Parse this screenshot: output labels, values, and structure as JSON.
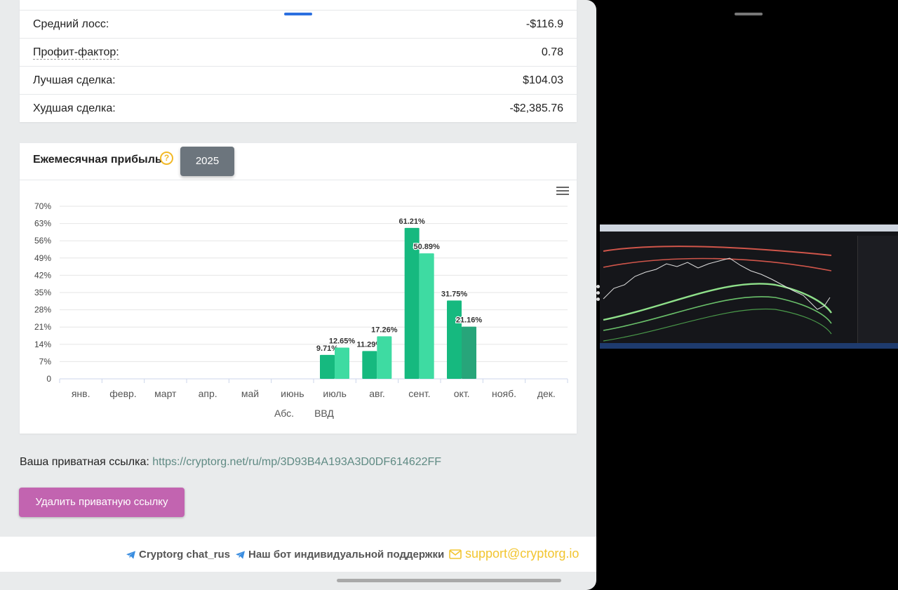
{
  "stats": [
    {
      "label": "Средний лосс:",
      "value": "-$116.9",
      "dotted": false
    },
    {
      "label": "Профит-фактор:",
      "value": "0.78",
      "dotted": true
    },
    {
      "label": "Лучшая сделка:",
      "value": "$104.03",
      "dotted": false
    },
    {
      "label": "Худшая сделка:",
      "value": "-$2,385.76",
      "dotted": false
    }
  ],
  "monthly": {
    "title": "Ежемесячная прибыль",
    "help_icon": "question-circle-icon",
    "year": "2025"
  },
  "chart_data": {
    "type": "bar",
    "categories": [
      "янв.",
      "февр.",
      "март",
      "апр.",
      "май",
      "июнь",
      "июль",
      "авг.",
      "сент.",
      "окт.",
      "нояб.",
      "дек."
    ],
    "series": [
      {
        "name": "Абс.",
        "values": [
          null,
          null,
          null,
          null,
          null,
          null,
          9.71,
          11.29,
          61.21,
          31.75,
          null,
          null
        ],
        "color": "#16b97f"
      },
      {
        "name": "ВВД",
        "values": [
          null,
          null,
          null,
          null,
          null,
          null,
          12.65,
          17.26,
          50.89,
          21.16,
          null,
          null
        ],
        "color": "#3edba2"
      }
    ],
    "data_labels": [
      [
        null,
        null,
        null,
        null,
        null,
        null,
        "9.71%",
        "11.29%",
        "61.21%",
        "31.75%",
        null,
        null
      ],
      [
        null,
        null,
        null,
        null,
        null,
        null,
        "12.65%",
        "17.26%",
        "50.89%",
        "21.16%",
        null,
        null
      ]
    ],
    "y_ticks": [
      "0",
      "7%",
      "14%",
      "21%",
      "28%",
      "35%",
      "42%",
      "49%",
      "56%",
      "63%",
      "70%"
    ],
    "ylim": [
      0,
      70
    ],
    "grid": true,
    "legend_placement": "bottom-center",
    "title": "",
    "xlabel": "",
    "ylabel": ""
  },
  "private_link": {
    "label": "Ваша приватная ссылка:",
    "url": "https://cryptorg.net/ru/mp/3D93B4A193A3D0DF614622FF"
  },
  "delete_button": "Удалить приватную ссылку",
  "footer": {
    "chat": "Cryptorg chat_rus",
    "bot": "Наш бот индивидуальной поддержки",
    "email": "support@cryptorg.io"
  }
}
